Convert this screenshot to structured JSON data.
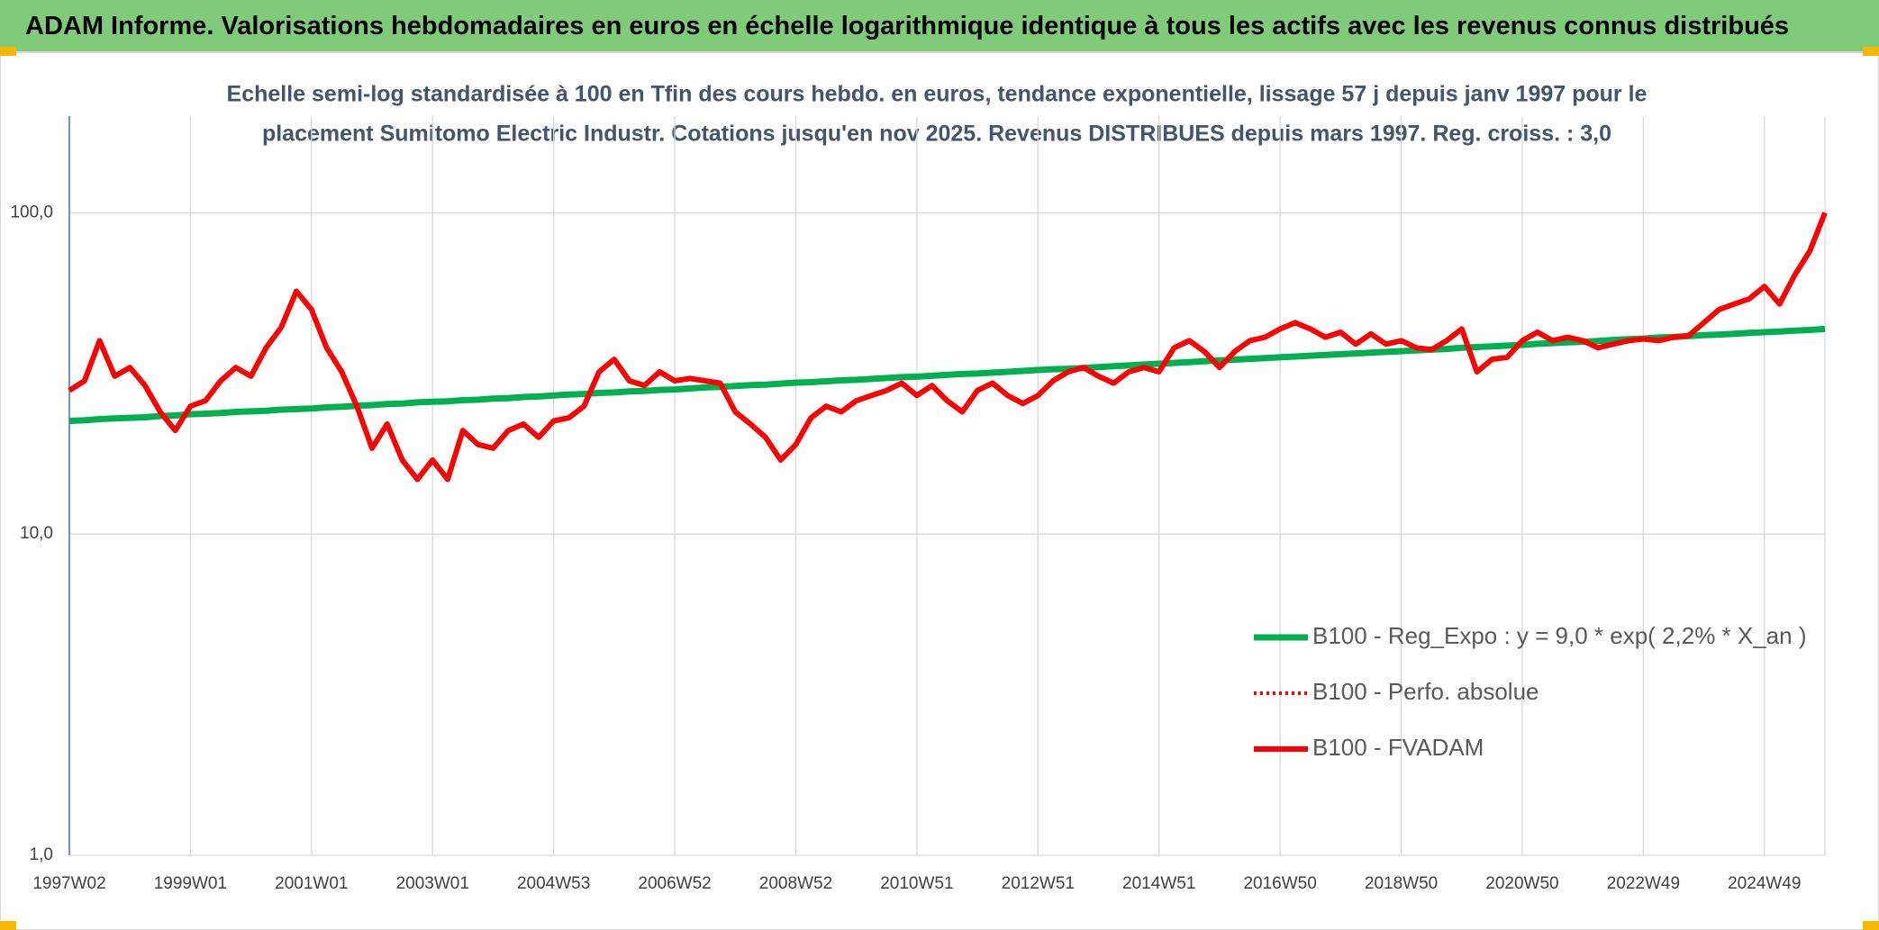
{
  "header": {
    "title": "ADAM Informe. Valorisations hebdomadaires en euros en échelle logarithmique identique à tous les actifs avec les revenus connus distribués"
  },
  "chart_data": {
    "type": "line",
    "subtitle": [
      "Echelle semi-log standardisée à 100 en Tfin des cours hebdo. en euros, tendance exponentielle, lissage 57 j depuis janv 1997 pour le",
      "placement Sumitomo Electric Industr. Cotations jusqu'en nov 2025. Revenus DISTRIBUES depuis mars 1997. Reg. croiss. : 3,0"
    ],
    "log_y": true,
    "grid": true,
    "legend": "right",
    "ylim": [
      1,
      200
    ],
    "yticks": [
      {
        "value": 1,
        "label": "1,0"
      },
      {
        "value": 10,
        "label": "10,0"
      },
      {
        "value": 100,
        "label": "100,0"
      }
    ],
    "categories": [
      "1997W02",
      null,
      null,
      null,
      null,
      null,
      null,
      null,
      "1999W01",
      null,
      null,
      null,
      null,
      null,
      null,
      null,
      "2001W01",
      null,
      null,
      null,
      null,
      null,
      null,
      null,
      "2003W01",
      null,
      null,
      null,
      null,
      null,
      null,
      null,
      "2004W53",
      null,
      null,
      null,
      null,
      null,
      null,
      null,
      "2006W52",
      null,
      null,
      null,
      null,
      null,
      null,
      null,
      "2008W52",
      null,
      null,
      null,
      null,
      null,
      null,
      null,
      "2010W51",
      null,
      null,
      null,
      null,
      null,
      null,
      null,
      "2012W51",
      null,
      null,
      null,
      null,
      null,
      null,
      null,
      "2014W51",
      null,
      null,
      null,
      null,
      null,
      null,
      null,
      "2016W50",
      null,
      null,
      null,
      null,
      null,
      null,
      null,
      "2018W50",
      null,
      null,
      null,
      null,
      null,
      null,
      null,
      "2020W50",
      null,
      null,
      null,
      null,
      null,
      null,
      null,
      "2022W49",
      null,
      null,
      null,
      null,
      null,
      null,
      null,
      "2024W49",
      null,
      null,
      null,
      null
    ],
    "series": [
      {
        "name": "B100 - Reg_Expo : y = 9,0 * exp( 2,2% *  X_an )",
        "color": "#00b050",
        "style": "solid",
        "width": 7,
        "values": [
          22.5,
          22.6,
          22.8,
          22.9,
          23.0,
          23.1,
          23.3,
          23.4,
          23.6,
          23.7,
          23.8,
          24.0,
          24.1,
          24.2,
          24.4,
          24.5,
          24.6,
          24.8,
          24.9,
          25.1,
          25.2,
          25.4,
          25.5,
          25.7,
          25.8,
          25.9,
          26.1,
          26.2,
          26.4,
          26.5,
          26.7,
          26.8,
          27.0,
          27.2,
          27.3,
          27.5,
          27.6,
          27.8,
          27.9,
          28.1,
          28.2,
          28.4,
          28.6,
          28.7,
          28.9,
          29.1,
          29.2,
          29.4,
          29.6,
          29.7,
          29.9,
          30.1,
          30.2,
          30.4,
          30.6,
          30.8,
          30.9,
          31.1,
          31.3,
          31.5,
          31.6,
          31.8,
          32.0,
          32.2,
          32.4,
          32.6,
          32.7,
          32.9,
          33.1,
          33.3,
          33.5,
          33.7,
          33.9,
          34.1,
          34.3,
          34.5,
          34.7,
          34.9,
          35.1,
          35.3,
          35.5,
          35.7,
          35.9,
          36.1,
          36.3,
          36.5,
          36.7,
          36.9,
          37.1,
          37.3,
          37.5,
          37.7,
          38.0,
          38.2,
          38.4,
          38.6,
          38.8,
          39.1,
          39.3,
          39.5,
          39.7,
          39.9,
          40.2,
          40.4,
          40.6,
          40.9,
          41.1,
          41.3,
          41.6,
          41.8,
          42.0,
          42.3,
          42.5,
          42.7,
          43.0,
          43.2,
          43.5
        ]
      },
      {
        "name": "B100 - Perfo. absolue",
        "color": "#ff0000",
        "style": "dotted",
        "width": 4,
        "values": [
          28,
          30,
          40,
          31,
          33,
          29,
          24,
          21,
          25,
          26,
          30,
          33,
          31,
          38,
          44,
          57,
          50,
          38,
          32,
          25,
          18.5,
          22,
          17,
          14.8,
          17,
          14.8,
          21,
          19,
          18.5,
          21,
          22,
          20,
          22.5,
          23,
          25,
          32,
          35,
          30,
          29,
          32,
          30,
          30.5,
          30,
          29.5,
          24,
          22,
          20,
          17,
          19,
          23,
          25,
          24,
          26,
          27,
          28,
          29.5,
          27,
          29,
          26,
          24,
          28,
          29.5,
          27,
          25.5,
          27,
          30,
          32,
          33,
          31,
          29.5,
          32,
          33,
          32,
          38,
          40,
          37,
          33,
          37,
          40,
          41,
          43.5,
          45.5,
          43.5,
          41,
          42.5,
          39,
          42,
          39,
          40,
          38,
          37.5,
          40,
          43.5,
          32,
          35,
          35.5,
          40,
          42.5,
          40,
          41,
          40,
          38,
          39,
          40,
          40.5,
          40,
          41,
          41.5,
          45.5,
          50,
          52,
          54,
          59,
          52,
          64,
          76,
          100
        ]
      },
      {
        "name": "B100 - FVADAM",
        "color": "#ff0000",
        "style": "solid",
        "width": 6,
        "values": [
          28,
          30,
          40,
          31,
          33,
          29,
          24,
          21,
          25,
          26,
          30,
          33,
          31,
          38,
          44,
          57,
          50,
          38,
          32,
          25,
          18.5,
          22,
          17,
          14.8,
          17,
          14.8,
          21,
          19,
          18.5,
          21,
          22,
          20,
          22.5,
          23,
          25,
          32,
          35,
          30,
          29,
          32,
          30,
          30.5,
          30,
          29.5,
          24,
          22,
          20,
          17,
          19,
          23,
          25,
          24,
          26,
          27,
          28,
          29.5,
          27,
          29,
          26,
          24,
          28,
          29.5,
          27,
          25.5,
          27,
          30,
          32,
          33,
          31,
          29.5,
          32,
          33,
          32,
          38,
          40,
          37,
          33,
          37,
          40,
          41,
          43.5,
          45.5,
          43.5,
          41,
          42.5,
          39,
          42,
          39,
          40,
          38,
          37.5,
          40,
          43.5,
          32,
          35,
          35.5,
          40,
          42.5,
          40,
          41,
          40,
          38,
          39,
          40,
          40.5,
          40,
          41,
          41.5,
          45.5,
          50,
          52,
          54,
          59,
          52,
          64,
          76,
          100
        ]
      }
    ]
  }
}
